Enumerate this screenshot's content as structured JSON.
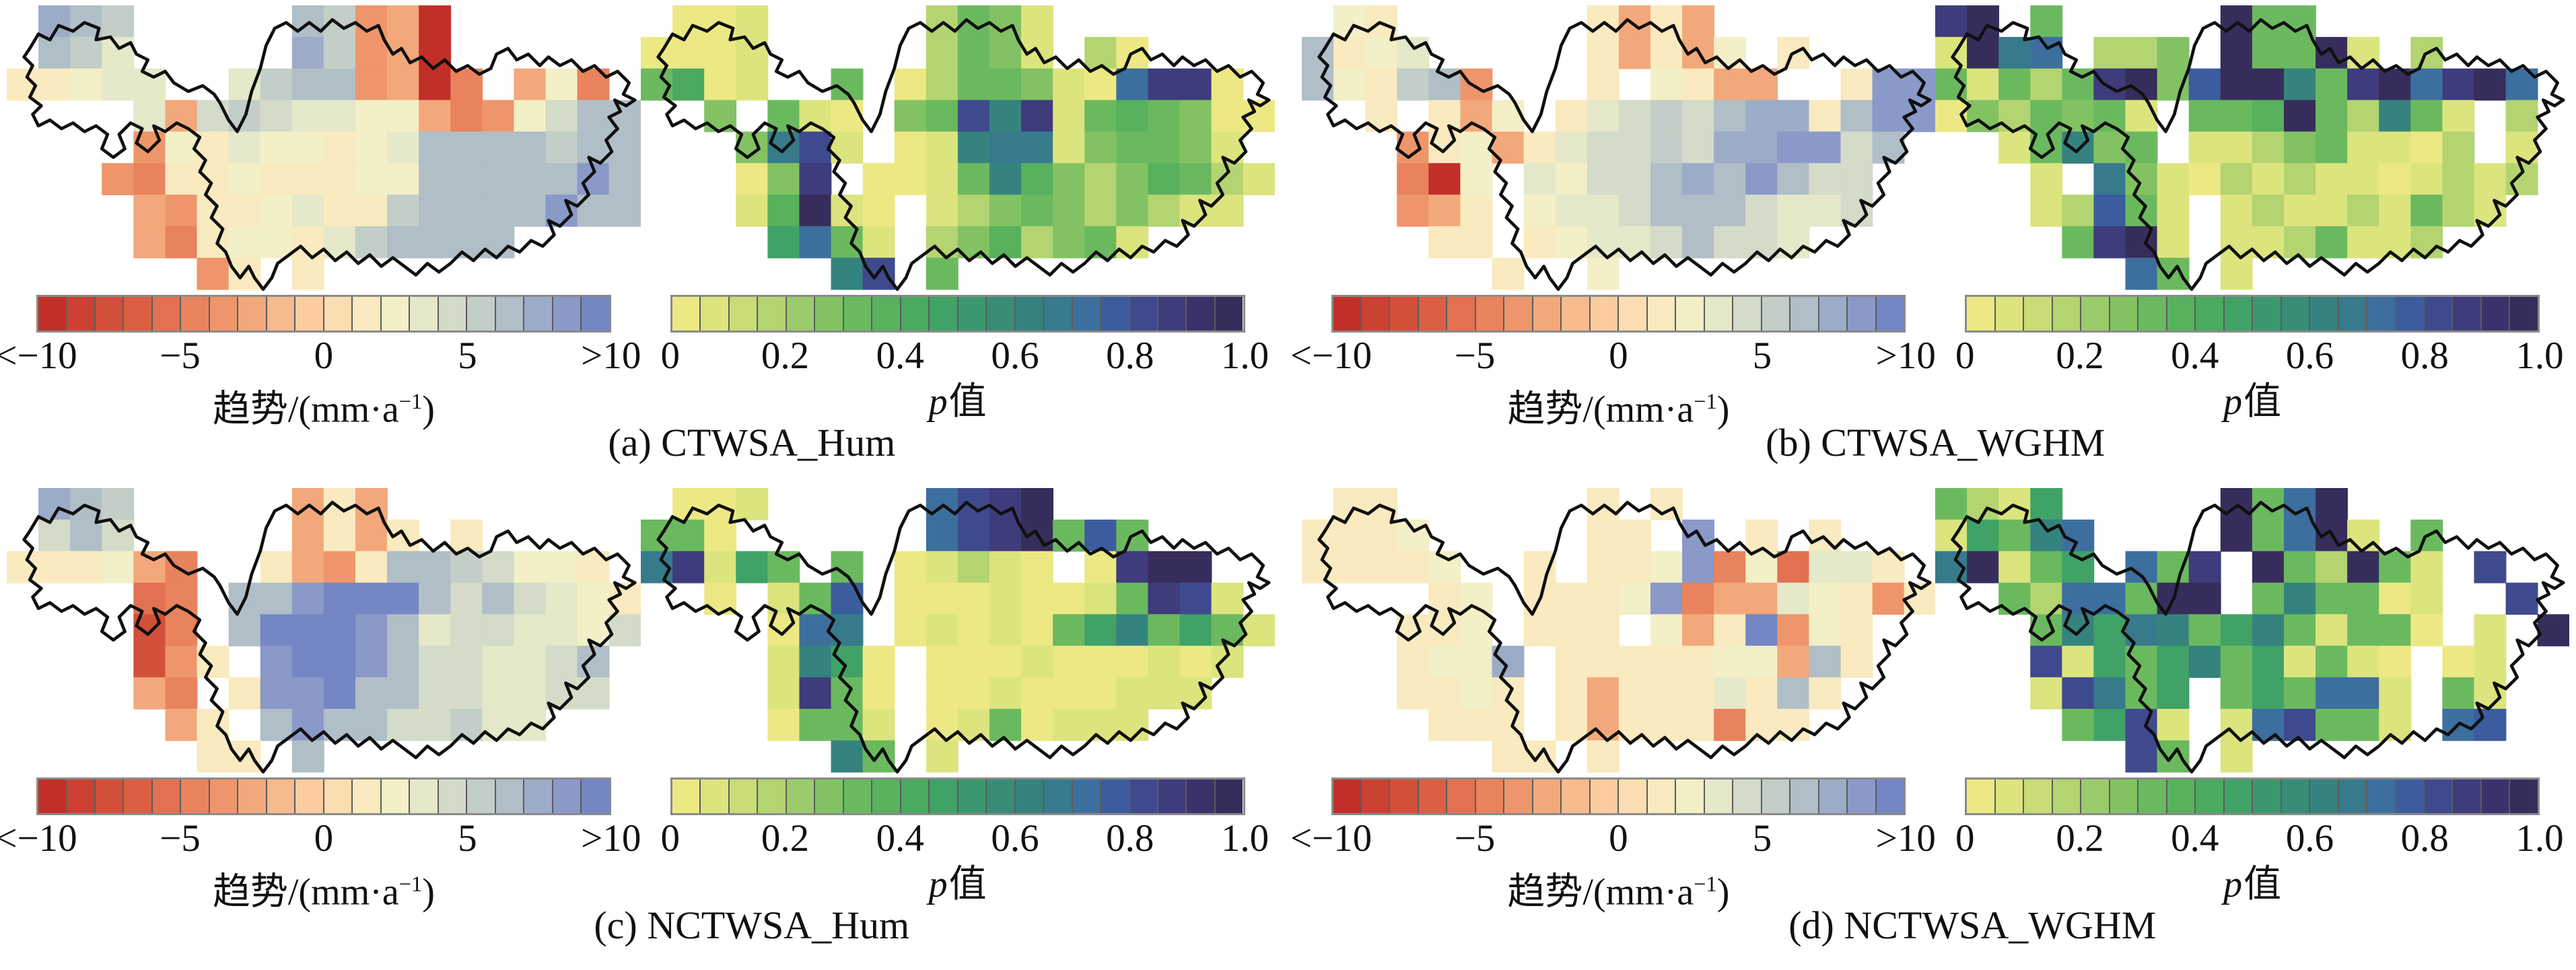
{
  "chart_data": {
    "type": "heatmap",
    "subtype": "gridded-basin-maps",
    "grid_size": {
      "cols": 20,
      "rows": 9
    },
    "palettes": {
      "trend": [
        "#c12f28",
        "#ca4133",
        "#d2503a",
        "#da6044",
        "#e17150",
        "#e8835d",
        "#ee956b",
        "#f3a87b",
        "#f7ba8d",
        "#facc9f",
        "#fbddb1",
        "#f9eabf",
        "#f3efc7",
        "#e5e8c9",
        "#d4dbc8",
        "#c2cec7",
        "#b0bec7",
        "#9cabc8",
        "#8a99c8",
        "#7486c4"
      ],
      "p": [
        "#ece984",
        "#dce47e",
        "#c9dc77",
        "#b3d471",
        "#9bcb6a",
        "#83c263",
        "#6bb95f",
        "#58b15d",
        "#4aaa60",
        "#40a267",
        "#3b986e",
        "#388d76",
        "#35837e",
        "#377a8c",
        "#3d6f9e",
        "#3b5c9e",
        "#3f4a8e",
        "#3e3c7c",
        "#3b326c",
        "#372d5c"
      ]
    },
    "colorbars": {
      "trend": {
        "ticks": [
          "<−10",
          "−5",
          "0",
          "5",
          ">10"
        ],
        "range": [
          -10,
          10
        ],
        "segments": 20
      },
      "p": {
        "ticks": [
          "0",
          "0.2",
          "0.4",
          "0.6",
          "0.8",
          "1.0"
        ],
        "range": [
          0,
          1
        ],
        "segments": 20
      }
    },
    "axis_labels": {
      "trend": {
        "pre": "趋势/(mm·a",
        "sup": "−1",
        "post": ")"
      },
      "p": {
        "italic": "p",
        "text": "值"
      }
    },
    "panels": [
      {
        "id": "a",
        "caption": "(a) CTWSA_Hum",
        "maps": [
          {
            "kind": "trend",
            "grid": [
              ".rqp.....qpgha......",
              ".qpn.....rpgha......",
              "llmnn..npqqghaf.hmf.",
              "....nhoponnmmhfgmoqq",
              "....gmlnmmlmnqqqqpqq",
              "...gfllmlllmmqqqqqsq",
              "....hgllmnllpqqqqsqq",
              "....hflmmlnpqqqq....",
              "......gl.l.........."
            ]
          },
          {
            "kind": "p",
            "grid": [
              ".aab.....dgfb.......",
              "aaab.....dgfb.da....",
              "giab..g.adggfbaorra.",
              "..f.gba.fgqmrbghgfaa",
              "...fnqb.abmnnbfggfb.",
              "...afr.aabgmhfdfhgdb",
              "...bhtba.bdfgfdfdbb.",
              "....jogb.dfhdfgb....",
              "......mq.g.........."
            ]
          }
        ]
      },
      {
        "id": "b",
        "caption": "(b) CTWSA_WGHM",
        "maps": [
          {
            "kind": "trend",
            "grid": [
              ".ml......lhlh.......",
              "qlmn.....lhlhm.l....",
              "qmlpqg...l.mlhh..lss",
              "..l.lhm.lnopoqrrlqss",
              "...glmhlnooporrssoq.",
              "...fam.nmooqrqsqoo..",
              "...ghl.mnnoqqqonno..",
              "....ll.lmnnoqoon....",
              "......l..m.........."
            ]
          },
          {
            "kind": "p",
            "grid": [
              "rt.g.....tgg........",
              "btno.ddf.tggtb.d....",
              "gbgdgrtfpttmgrtorto.",
              "afdgfgb.gghtgdmgb.d.",
              "..bgmfg.bbdfgbbad.b.",
              "...b.nfbadbdbbabdbd.",
              "...bdpgb.bdbbdbgdb..",
              "....grtb.bbdgbbd....",
              "......og.b.........."
            ]
          }
        ]
      },
      {
        "id": "c",
        "caption": "(c) NCTWSA_Hum",
        "maps": [
          {
            "kind": "trend",
            "grid": [
              ".rqp.....hlh........",
              ".oqo.....hlhl.l.....",
              "lllmhf..lhglqqpomml.",
              "....ef.qqstttqoqonml",
              "....cf.qtttsqnoonnmo",
              "....cgl.sttsqoonnoq.",
              "....hf.lsstqqoonnoo.",
              ".....hl.qsqqoopnn...",
              "......ll.q.........."
            ]
          },
          {
            "kind": "p",
            "grid": [
              ".aab.....oqrt.......",
              "gga......oqrtgpg....",
              "nrbjg.g.abdba.artt..",
              "..a.bgp.aaabaabgrqb.",
              "....aon.ababagjmgjgb",
              "....bmja.aaabaaabab.",
              "....brga.aabaaabbb..",
              "....aggb.abgabbb....",
              "......mg.b.........."
            ]
          }
        ]
      },
      {
        "id": "d",
        "caption": "(d) NCTWSA_WGHM",
        "maps": [
          {
            "kind": "trend",
            "grid": [
              ".ll......l.l........",
              "lllm.....ll.s.l.l...",
              "llllm..l.llmsfmennl.",
              "....lm.lllmsfhhnmlgl",
              "...llm.lll.mhltgml..",
              "...lmmr.lllllmmhql..",
              "...llml.lhlllnlql...",
              "....lll.lhlllfll....",
              "......ll.l.........."
            ]
          },
          {
            "kind": "p",
            "grid": [
              "gdbj.....tgot.......",
              "bjgmo....tgotb.g....",
              "ntbgj.ogr.tgdtgb.q..",
              "..gdoogtt.gmggab..q.",
              "...gmjnmgjmgbgga.b.t",
              "...qbjgjmgjbgba.ab..",
              "...bqngj.gjgoob.gb..",
              "....gjqb.boqggb.op..",
              "......qg.b.........."
            ]
          }
        ]
      }
    ]
  }
}
